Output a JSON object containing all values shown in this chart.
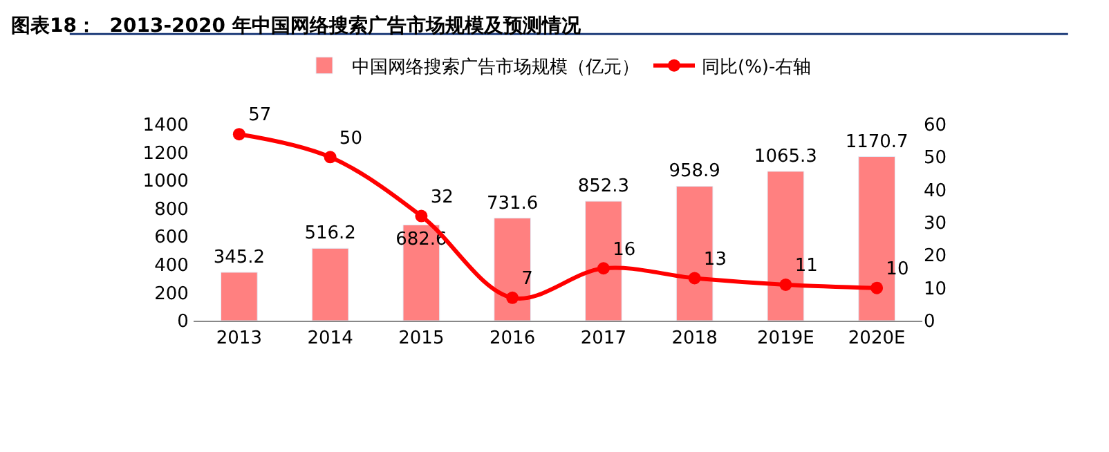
{
  "chart_data": {
    "type": "bar",
    "title": "图表18：  2013-2020 年中国网络搜索广告市场规模及预测情况",
    "categories": [
      "2013",
      "2014",
      "2015",
      "2016",
      "2017",
      "2018",
      "2019E",
      "2020E"
    ],
    "series": [
      {
        "name": "中国网络搜索广告市场规模（亿元）",
        "color": "#ff8080",
        "values": [
          345.2,
          516.2,
          682.6,
          731.6,
          852.3,
          958.9,
          1065.3,
          1170.7
        ]
      },
      {
        "name": "同比(%)-右轴",
        "type": "line",
        "axis": "y2",
        "color": "#ff0000",
        "values": [
          57,
          50,
          32,
          7,
          16,
          13,
          11,
          10
        ]
      }
    ],
    "ylim": [
      0,
      1400
    ],
    "yticks": [
      0,
      200,
      400,
      600,
      800,
      1000,
      1200,
      1400
    ],
    "y2lim": [
      0,
      60
    ],
    "y2ticks": [
      0,
      10,
      20,
      30,
      40,
      50,
      60
    ],
    "data_labels": true,
    "legend": "top",
    "marker": "circle"
  }
}
